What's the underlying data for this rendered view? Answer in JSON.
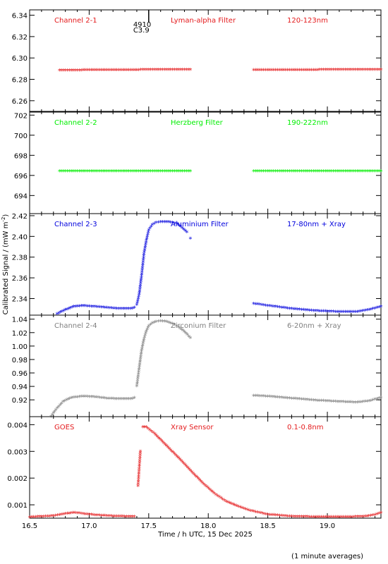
{
  "chart_data": {
    "type": "scatter",
    "xlabel": "Time / h UTC, 15 Dec 2025",
    "ylabel": "Calibrated Signal / (mW m",
    "ylabel_sup": "-2",
    "ylabel_close": ")",
    "footnote": "(1 minute averages)",
    "xlim": [
      16.5,
      19.45
    ],
    "xticks": [
      "16.5",
      "17.0",
      "17.5",
      "18.0",
      "18.5",
      "19.0"
    ],
    "marker": {
      "label_top": "4910",
      "label_bottom": "C3.9",
      "x": 17.5
    },
    "panels": [
      {
        "id": "ch21",
        "name": "Channel 2-1",
        "filter": "Lyman-alpha Filter",
        "band": "120-123nm",
        "color": "#e41a1c",
        "ylim": [
          6.25,
          6.345
        ],
        "yticks": [
          "6.26",
          "6.28",
          "6.30",
          "6.32",
          "6.34"
        ],
        "segments": [
          {
            "x": [
              16.75,
              17.0,
              17.5,
              17.85
            ],
            "y": [
              6.2882,
              6.2885,
              6.2888,
              6.289
            ]
          },
          {
            "x": [
              18.38,
              18.8,
              19.2,
              19.45
            ],
            "y": [
              6.2885,
              6.2887,
              6.2889,
              6.289
            ]
          }
        ]
      },
      {
        "id": "ch22",
        "name": "Channel 2-2",
        "filter": "Herzberg Filter",
        "band": "190-222nm",
        "color": "#00ee00",
        "ylim": [
          692.2,
          702.3
        ],
        "yticks": [
          "694",
          "696",
          "698",
          "700",
          "702"
        ],
        "segments": [
          {
            "x": [
              16.75,
              17.0,
              17.5,
              17.85
            ],
            "y": [
              696.4,
              696.4,
              696.4,
              696.4
            ]
          },
          {
            "x": [
              18.38,
              18.8,
              19.2,
              19.45
            ],
            "y": [
              696.4,
              696.4,
              696.4,
              696.4
            ]
          }
        ]
      },
      {
        "id": "ch23",
        "name": "Channel 2-3",
        "filter": "Aluminium Filter",
        "band": "17-80nm + Xray",
        "color": "#0000dd",
        "ylim": [
          2.324,
          2.422
        ],
        "yticks": [
          "2.34",
          "2.36",
          "2.38",
          "2.40",
          "2.42"
        ],
        "segments": [
          {
            "x": [
              16.73,
              16.8,
              16.87,
              16.95,
              17.05,
              17.15,
              17.25,
              17.35,
              17.38
            ],
            "y": [
              2.325,
              2.329,
              2.332,
              2.333,
              2.332,
              2.331,
              2.33,
              2.33,
              2.331
            ]
          },
          {
            "x": [
              17.4,
              17.42,
              17.44,
              17.46,
              17.48,
              17.5,
              17.53,
              17.56,
              17.6,
              17.65,
              17.7,
              17.74,
              17.78,
              17.82
            ],
            "y": [
              2.334,
              2.344,
              2.362,
              2.383,
              2.396,
              2.406,
              2.411,
              2.413,
              2.414,
              2.414,
              2.413,
              2.412,
              2.408,
              2.404
            ]
          },
          {
            "x": [
              17.85
            ],
            "y": [
              2.398
            ]
          },
          {
            "x": [
              18.38,
              18.5,
              18.7,
              18.9,
              19.1,
              19.25,
              19.35,
              19.45
            ],
            "y": [
              2.335,
              2.333,
              2.33,
              2.328,
              2.327,
              2.327,
              2.329,
              2.332
            ]
          }
        ]
      },
      {
        "id": "ch24",
        "name": "Channel 2-4",
        "filter": "Zirconium Filter",
        "band": "6-20nm + Xray",
        "color": "#808080",
        "ylim": [
          0.895,
          1.046
        ],
        "yticks": [
          "0.92",
          "0.94",
          "0.96",
          "0.98",
          "1.00",
          "1.02",
          "1.04"
        ],
        "segments": [
          {
            "x": [
              16.68,
              16.72,
              16.78,
              16.85,
              16.95,
              17.05,
              17.15,
              17.25,
              17.35,
              17.38
            ],
            "y": [
              0.895,
              0.905,
              0.917,
              0.923,
              0.925,
              0.924,
              0.922,
              0.921,
              0.921,
              0.923
            ]
          },
          {
            "x": [
              17.4,
              17.42,
              17.44,
              17.46,
              17.48,
              17.5,
              17.53,
              17.56,
              17.6,
              17.65,
              17.7,
              17.75,
              17.8,
              17.85
            ],
            "y": [
              0.94,
              0.967,
              0.993,
              1.01,
              1.022,
              1.03,
              1.034,
              1.036,
              1.037,
              1.036,
              1.033,
              1.028,
              1.021,
              1.012
            ]
          },
          {
            "x": [
              18.38,
              18.5,
              18.7,
              18.9,
              19.1,
              19.25,
              19.35,
              19.45
            ],
            "y": [
              0.926,
              0.925,
              0.922,
              0.919,
              0.917,
              0.916,
              0.918,
              0.923
            ]
          }
        ]
      },
      {
        "id": "goes",
        "name": "GOES",
        "filter": "Xray Sensor",
        "band": "0.1-0.8nm",
        "color": "#e41a1c",
        "ylim": [
          0.0005,
          0.0043
        ],
        "yticks": [
          "0.001",
          "0.002",
          "0.003",
          "0.004"
        ],
        "segments": [
          {
            "x": [
              16.5,
              16.7,
              16.8,
              16.88,
              16.95,
              17.05,
              17.2,
              17.38
            ],
            "y": [
              0.00053,
              0.00058,
              0.00066,
              0.0007,
              0.00066,
              0.00061,
              0.00057,
              0.00055
            ]
          },
          {
            "x": [
              17.41,
              17.43
            ],
            "y": [
              0.0017,
              0.003
            ]
          },
          {
            "x": [
              17.45,
              17.48,
              17.55,
              17.65,
              17.75,
              17.85,
              17.95,
              18.05,
              18.15,
              18.25,
              18.35,
              18.5,
              18.7,
              18.9,
              19.1,
              19.3,
              19.38,
              19.45
            ],
            "y": [
              0.0039,
              0.0039,
              0.00365,
              0.0032,
              0.00275,
              0.00228,
              0.00182,
              0.00142,
              0.00112,
              0.00093,
              0.00078,
              0.00063,
              0.00056,
              0.00054,
              0.00054,
              0.00055,
              0.0006,
              0.0007
            ]
          }
        ]
      }
    ]
  }
}
